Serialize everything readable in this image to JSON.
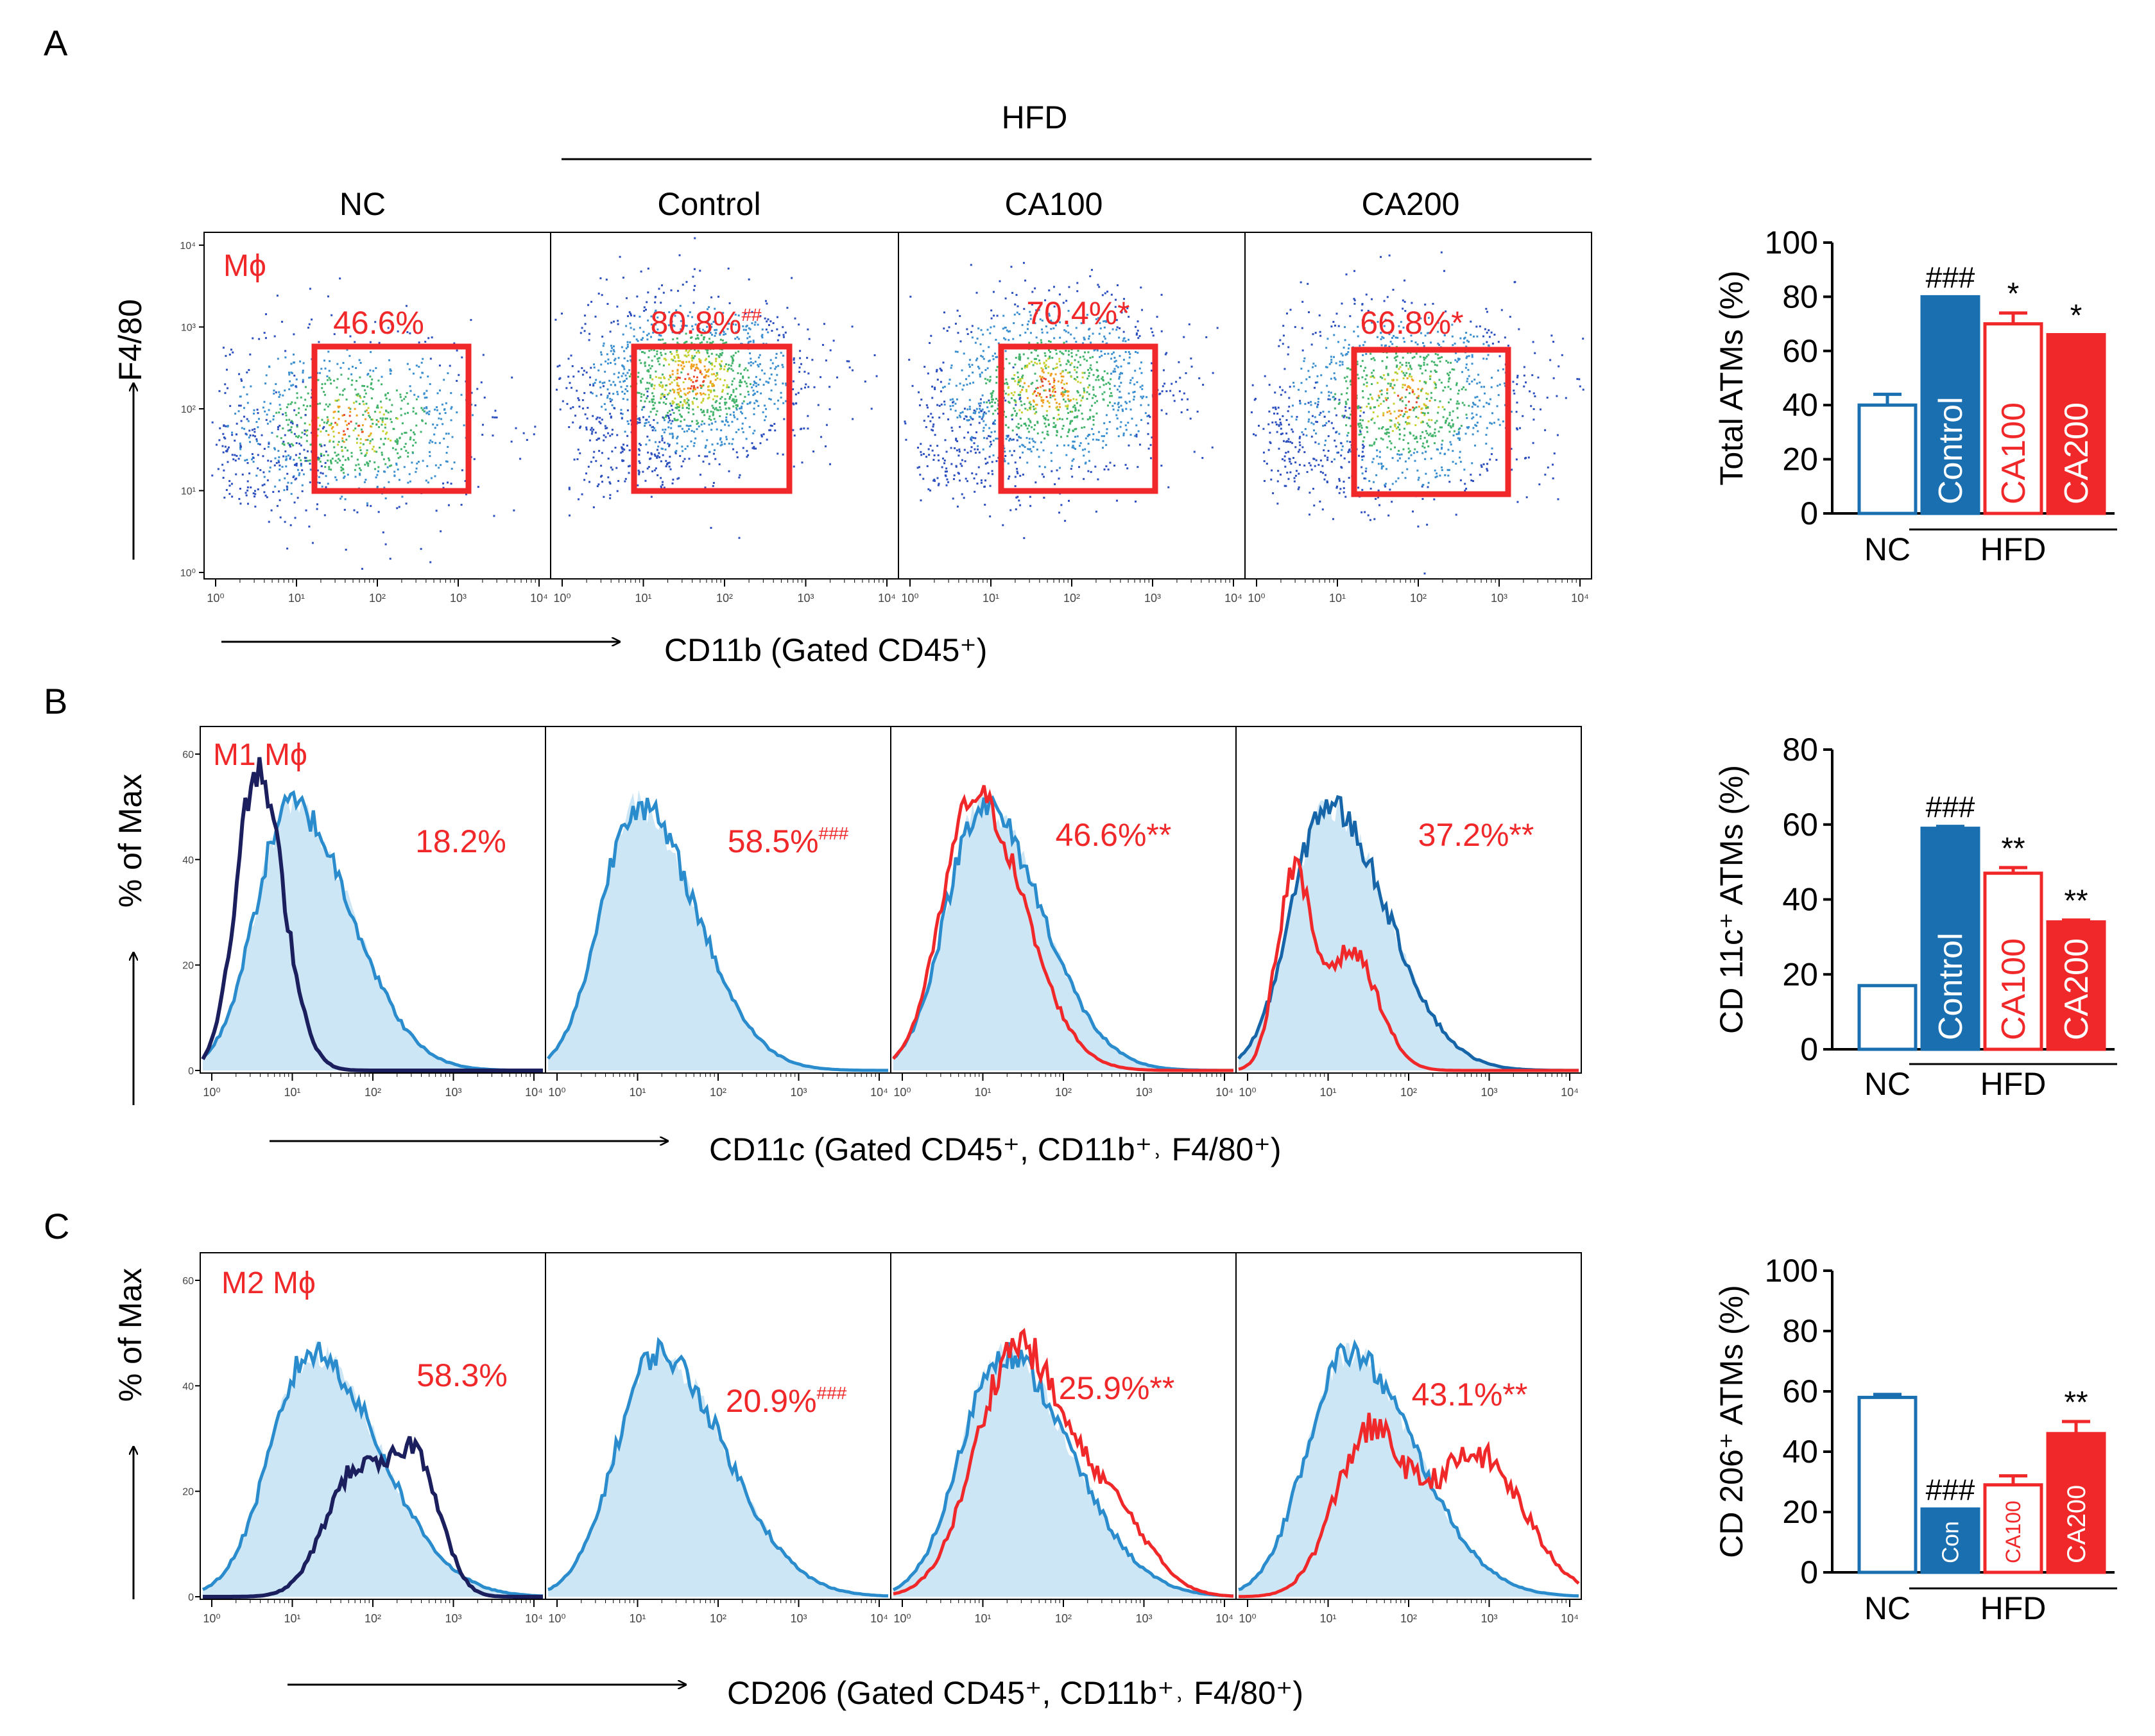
{
  "figure": {
    "panel_letters": [
      "A",
      "B",
      "C"
    ],
    "group_labels": [
      "NC",
      "Control",
      "CA100",
      "CA200"
    ],
    "hfd_label": "HFD"
  },
  "panel_a": {
    "title": "Mϕ",
    "y_label": "F4/80",
    "x_label": "CD11b (Gated CD45⁺)",
    "plots": [
      {
        "label": "NC",
        "percent": "46.6%",
        "mark": ""
      },
      {
        "label": "Control",
        "percent": "80.8%",
        "mark": "##"
      },
      {
        "label": "CA100",
        "percent": "70.4%*",
        "mark": ""
      },
      {
        "label": "CA200",
        "percent": "66.8%*",
        "mark": ""
      }
    ]
  },
  "panel_b": {
    "title": "M1 Mϕ",
    "y_label": "% of Max",
    "x_label": "CD11c (Gated CD45⁺, CD11b⁺˒ F4/80⁺)",
    "plots": [
      {
        "percent": "18.2%",
        "mark": ""
      },
      {
        "percent": "58.5%",
        "mark": "###"
      },
      {
        "percent": "46.6%**",
        "mark": ""
      },
      {
        "percent": "37.2%**",
        "mark": ""
      }
    ]
  },
  "panel_c": {
    "title": "M2 Mϕ",
    "y_label": "% of Max",
    "x_label": "CD206 (Gated CD45⁺, CD11b⁺˒ F4/80⁺)",
    "plots": [
      {
        "percent": "58.3%",
        "mark": ""
      },
      {
        "percent": "20.9%",
        "mark": "###"
      },
      {
        "percent": "25.9%**",
        "mark": ""
      },
      {
        "percent": "43.1%**",
        "mark": ""
      }
    ]
  },
  "axes": {
    "log_ticks": [
      "10⁰",
      "10¹",
      "10²",
      "10³",
      "10⁴"
    ],
    "hist_ticks_y": [
      "0",
      "20",
      "40",
      "60"
    ]
  },
  "colors": {
    "red": "#f0282a",
    "blue": "#1a6fb0",
    "navy": "#1c1f5e",
    "light_fill": "#cde6f5"
  },
  "chart_data": [
    {
      "type": "bar",
      "id": "total_atms",
      "ylabel": "Total ATMs (%)",
      "ylim": [
        0,
        100
      ],
      "yticks": [
        0,
        20,
        40,
        60,
        80,
        100
      ],
      "categories": [
        "NC",
        "Control",
        "CA100",
        "CA200"
      ],
      "bar_labels": [
        "",
        "Control",
        "CA100",
        "CA200"
      ],
      "values": [
        40,
        80,
        70,
        66
      ],
      "errors": [
        4,
        0,
        4,
        0
      ],
      "annotations": [
        "",
        "###",
        "*",
        "*"
      ],
      "group_labels": [
        "NC",
        "HFD"
      ]
    },
    {
      "type": "bar",
      "id": "cd11c_atms",
      "ylabel": "CD 11c⁺ ATMs (%)",
      "ylim": [
        0,
        80
      ],
      "yticks": [
        0,
        20,
        40,
        60,
        80
      ],
      "categories": [
        "NC",
        "Control",
        "CA100",
        "CA200"
      ],
      "bar_labels": [
        "",
        "Control",
        "CA100",
        "CA200"
      ],
      "values": [
        17,
        59,
        47,
        34
      ],
      "errors": [
        0,
        0.5,
        1.5,
        0.5
      ],
      "annotations": [
        "",
        "###",
        "**",
        "**"
      ],
      "group_labels": [
        "NC",
        "HFD"
      ]
    },
    {
      "type": "bar",
      "id": "cd206_atms",
      "ylabel": "CD 206⁺ ATMs (%)",
      "ylim": [
        0,
        100
      ],
      "yticks": [
        0,
        20,
        40,
        60,
        80,
        100
      ],
      "categories": [
        "NC",
        "Control",
        "CA100",
        "CA200"
      ],
      "bar_labels": [
        "",
        "Con",
        "CA100",
        "CA200"
      ],
      "values": [
        58,
        21,
        29,
        46
      ],
      "errors": [
        1,
        0,
        3,
        4
      ],
      "annotations": [
        "",
        "###",
        "",
        "**"
      ],
      "group_labels": [
        "NC",
        "HFD"
      ]
    }
  ]
}
